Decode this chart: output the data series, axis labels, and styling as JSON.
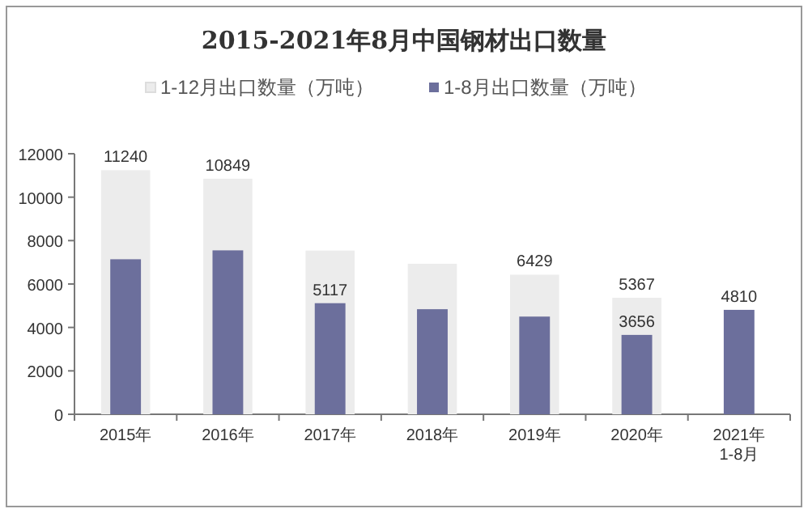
{
  "chart_data": {
    "type": "bar",
    "title": "2015-2021年8月中国钢材出口数量",
    "categories": [
      "2015年",
      "2016年",
      "2017年",
      "2018年",
      "2019年",
      "2020年",
      "2021年\n1-8月"
    ],
    "series": [
      {
        "name": "1-12月出口数量（万吨）",
        "color": "#ececec",
        "values": [
          11240,
          10849,
          7540,
          6930,
          6429,
          5367,
          null
        ],
        "value_labels": [
          "11240",
          "10849",
          null,
          null,
          "6429",
          "5367",
          null
        ]
      },
      {
        "name": "1-8月出口数量（万吨）",
        "color": "#6c6f9c",
        "values": [
          7140,
          7550,
          5117,
          4840,
          4500,
          3656,
          4810
        ],
        "value_labels": [
          null,
          null,
          "5117",
          null,
          null,
          "3656",
          "4810"
        ]
      }
    ],
    "ylim": [
      0,
      12000
    ],
    "yticks": [
      0,
      2000,
      4000,
      6000,
      8000,
      10000,
      12000
    ],
    "legend": "top",
    "grid": false
  }
}
